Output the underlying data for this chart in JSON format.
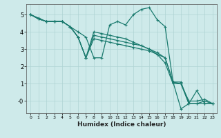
{
  "xlabel": "Humidex (Indice chaleur)",
  "bg_color": "#ceeaea",
  "line_color": "#1a7a6e",
  "grid_color": "#afd4d4",
  "xlim": [
    -0.5,
    23.5
  ],
  "ylim": [
    -0.7,
    5.6
  ],
  "yticks": [
    0,
    1,
    2,
    3,
    4,
    5
  ],
  "ytick_labels": [
    "-0",
    "1",
    "2",
    "3",
    "4",
    "5"
  ],
  "xticks": [
    0,
    1,
    2,
    3,
    4,
    5,
    6,
    7,
    8,
    9,
    10,
    11,
    12,
    13,
    14,
    15,
    16,
    17,
    18,
    19,
    20,
    21,
    22,
    23
  ],
  "series": [
    [
      5.0,
      4.8,
      4.6,
      4.6,
      4.6,
      4.3,
      4.0,
      3.7,
      2.5,
      2.5,
      4.4,
      4.6,
      4.4,
      5.0,
      5.3,
      5.4,
      4.7,
      4.3,
      1.1,
      -0.45,
      -0.15,
      0.6,
      -0.15,
      -0.15
    ],
    [
      5.0,
      4.75,
      4.6,
      4.6,
      4.6,
      4.3,
      3.7,
      2.5,
      3.6,
      3.5,
      3.4,
      3.3,
      3.2,
      3.1,
      3.0,
      2.9,
      2.7,
      2.5,
      1.1,
      1.1,
      -0.15,
      -0.15,
      -0.15,
      -0.15
    ],
    [
      5.0,
      4.75,
      4.6,
      4.6,
      4.6,
      4.3,
      3.7,
      2.5,
      3.8,
      3.7,
      3.6,
      3.5,
      3.4,
      3.3,
      3.2,
      3.0,
      2.8,
      2.5,
      1.1,
      1.0,
      0.0,
      0.0,
      0.1,
      -0.15
    ],
    [
      5.0,
      4.75,
      4.6,
      4.6,
      4.6,
      4.3,
      3.7,
      2.5,
      4.0,
      3.9,
      3.8,
      3.7,
      3.6,
      3.4,
      3.2,
      3.0,
      2.7,
      2.2,
      1.0,
      1.0,
      -0.15,
      -0.15,
      0.0,
      -0.15
    ]
  ]
}
